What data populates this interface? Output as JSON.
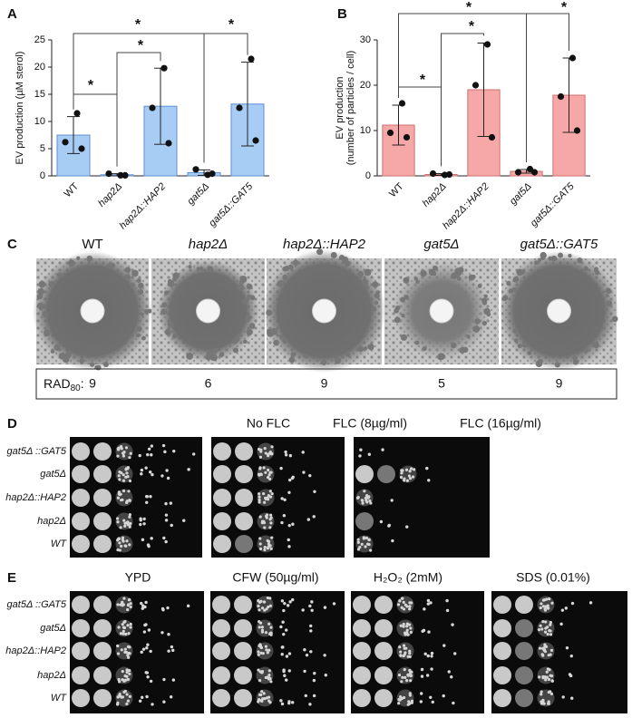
{
  "chart_data": [
    {
      "type": "bar",
      "panel": "A",
      "y_label": [
        "EV production (µM sterol)"
      ],
      "categories": [
        "WT",
        "hap2Δ",
        "hap2Δ::HAP2",
        "gat5Δ",
        "gat5Δ::GAT5"
      ],
      "values": [
        7.5,
        0.2,
        12.8,
        0.6,
        13.2
      ],
      "errors": [
        3.4,
        0.2,
        7.0,
        0.5,
        7.7
      ],
      "points": [
        [
          11.5,
          6.2,
          5.0
        ],
        [
          0.1,
          0.4,
          0.1
        ],
        [
          19.8,
          12.5,
          6.0
        ],
        [
          0.2,
          1.2,
          0.4
        ],
        [
          21.5,
          12.5,
          6.5
        ]
      ],
      "color": "#a8cdf5",
      "edge": "#5d8fcf",
      "ylim": [
        0,
        25
      ],
      "yticks": [
        0,
        5,
        10,
        15,
        20,
        25
      ],
      "annotations": [
        "*",
        "*",
        "*",
        "*"
      ]
    },
    {
      "type": "bar",
      "panel": "B",
      "y_label": [
        "EV production",
        "(number of particles / cell)"
      ],
      "categories": [
        "WT",
        "hap2Δ",
        "hap2Δ::HAP2",
        "gat5Δ",
        "gat5Δ::GAT5"
      ],
      "values": [
        11.2,
        0.3,
        19.0,
        1.0,
        17.8
      ],
      "errors": [
        4.4,
        0.2,
        10.3,
        0.4,
        8.2
      ],
      "points": [
        [
          16.0,
          9.5,
          8.5
        ],
        [
          0.2,
          0.5,
          0.3
        ],
        [
          29.0,
          20.0,
          8.5
        ],
        [
          1.5,
          0.8,
          0.8
        ],
        [
          26.0,
          17.5,
          10.0
        ]
      ],
      "color": "#f6a8a8",
      "edge": "#cf6f6f",
      "ylim": [
        0,
        30
      ],
      "yticks": [
        0,
        10,
        20,
        30
      ],
      "annotations": [
        "*",
        "*",
        "*",
        "*"
      ]
    }
  ],
  "panels": {
    "C": {
      "letter": "C",
      "strains": [
        "WT",
        "hap2Δ",
        "hap2Δ::HAP2",
        "gat5Δ",
        "gat5Δ::GAT5"
      ],
      "rad_label": [
        "RAD",
        "80",
        ":"
      ],
      "rad80": [
        9,
        6,
        9,
        5,
        9
      ]
    },
    "D": {
      "letter": "D",
      "conditions": [
        "No FLC",
        "FLC (8µg/ml)",
        "FLC (16µg/ml)"
      ],
      "rows": [
        "gat5Δ ::GAT5",
        "gat5Δ",
        "hap2Δ::HAP2",
        "hap2Δ",
        "WT"
      ]
    },
    "E": {
      "letter": "E",
      "conditions": [
        "YPD",
        "CFW (50µg/ml)",
        "H₂O₂ (2mM)",
        "SDS (0.01%)"
      ],
      "rows": [
        "gat5Δ ::GAT5",
        "gat5Δ",
        "hap2Δ::HAP2",
        "hap2Δ",
        "WT"
      ]
    }
  }
}
